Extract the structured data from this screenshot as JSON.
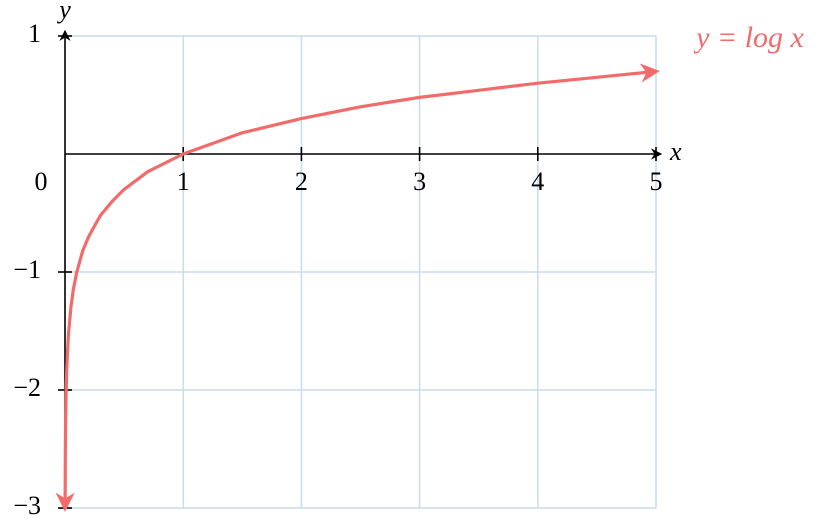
{
  "chart_data": {
    "type": "line",
    "x_label": "x",
    "y_label": "y",
    "annotation": "y = log x",
    "x": [
      0.001,
      0.002,
      0.003,
      0.005,
      0.007,
      0.01,
      0.015,
      0.02,
      0.03,
      0.05,
      0.07,
      0.1,
      0.15,
      0.2,
      0.3,
      0.4,
      0.5,
      0.7,
      1,
      1.5,
      2,
      2.5,
      3,
      3.5,
      4,
      4.5,
      5
    ],
    "series": [
      {
        "name": "y = log x",
        "color": "#f26b6b",
        "values": [
          -3,
          -2.7,
          -2.52,
          -2.3,
          -2.15,
          -2,
          -1.82,
          -1.7,
          -1.52,
          -1.3,
          -1.15,
          -1,
          -0.82,
          -0.7,
          -0.52,
          -0.4,
          -0.3,
          -0.15,
          0,
          0.18,
          0.3,
          0.4,
          0.48,
          0.54,
          0.6,
          0.65,
          0.7
        ]
      }
    ],
    "xlim": [
      0,
      5
    ],
    "ylim": [
      -3,
      1
    ],
    "xticks": [
      0,
      1,
      2,
      3,
      4,
      5
    ],
    "yticks": [
      1,
      {
        "value": -1,
        "label": "−1"
      },
      {
        "value": -2,
        "label": "−2"
      },
      {
        "value": -3,
        "label": "−3"
      }
    ],
    "grid": true,
    "grid_color": "#c9dcee"
  }
}
